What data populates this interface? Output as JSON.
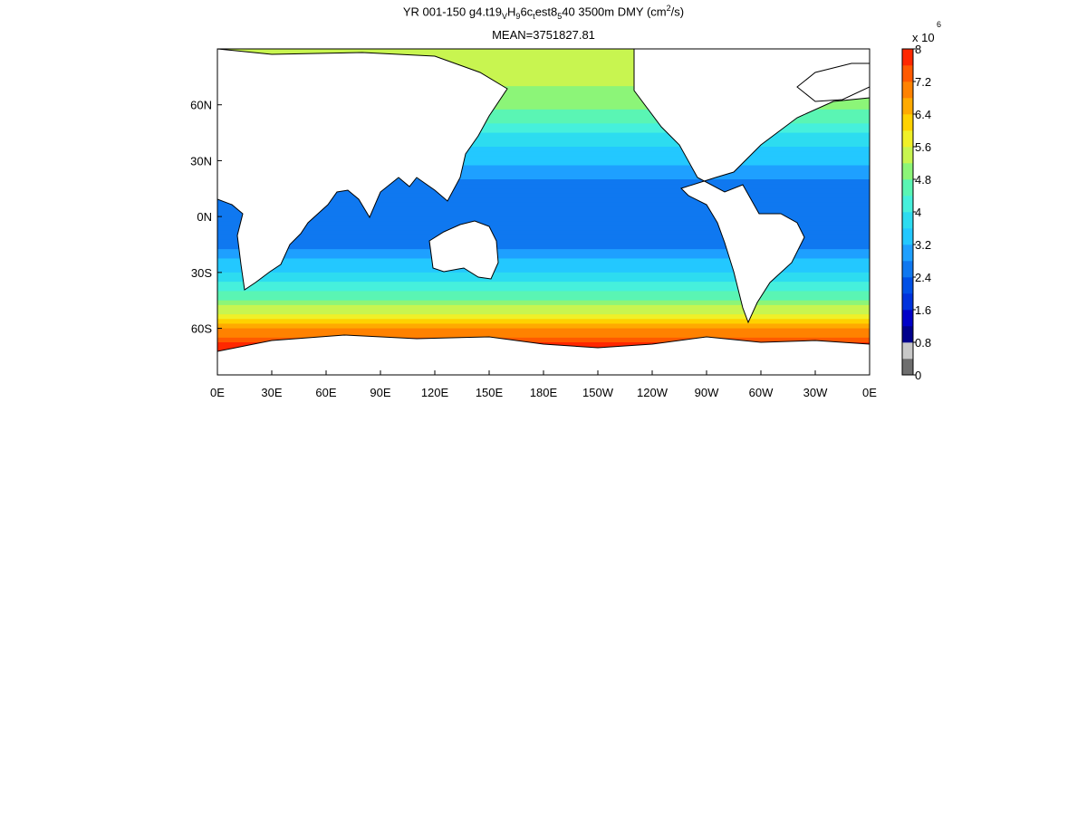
{
  "title": {
    "prefix": "YR 001-150 g4.t19",
    "sub1": "V",
    "mid1": "H",
    "sub2": "9",
    "mid2": "6c",
    "sub3": "t",
    "mid3": "est8",
    "sub4": "5",
    "suffix": "40 3500m DMY (cm",
    "sup": "2",
    "end": "/s)"
  },
  "subtitle": "MEAN=3751827.81",
  "axes": {
    "x_ticks": [
      "0E",
      "30E",
      "60E",
      "90E",
      "120E",
      "150E",
      "180E",
      "150W",
      "120W",
      "90W",
      "60W",
      "30W",
      "0E"
    ],
    "y_ticks": [
      "60N",
      "30N",
      "0N",
      "30S",
      "60S"
    ],
    "y_values": [
      60,
      30,
      0,
      -30,
      -60
    ],
    "lat_range": [
      -85,
      90
    ],
    "lon_range": [
      0,
      360
    ]
  },
  "colorbar": {
    "multiplier": "x 10",
    "exponent": "6",
    "labels": [
      "8",
      "7.2",
      "6.4",
      "5.6",
      "4.8",
      "4",
      "3.2",
      "2.4",
      "1.6",
      "0.8",
      "0"
    ],
    "range": [
      0,
      8
    ],
    "colors": [
      "#6e6e6e",
      "#c8c8c8",
      "#00008c",
      "#0000c8",
      "#0032dc",
      "#0050e6",
      "#0f78f0",
      "#1ea0ff",
      "#23c8ff",
      "#2ddcf0",
      "#46f0dc",
      "#5af5b4",
      "#8cf578",
      "#c8f550",
      "#f0f028",
      "#ffd200",
      "#ffaa00",
      "#ff8200",
      "#ff5a00",
      "#ff2800"
    ]
  },
  "chart_data": {
    "type": "heatmap",
    "title": "YR 001-150 g4.t19VH96ctest8540 3500m DMY (cm2/s)",
    "subtitle": "MEAN=3751827.81",
    "xlabel": "",
    "ylabel": "",
    "colorbar_scale": "x 10^6",
    "field_by_latitude": [
      {
        "lat": 75,
        "value": 5.3
      },
      {
        "lat": 60,
        "value": 5.0
      },
      {
        "lat": 45,
        "value": 4.0
      },
      {
        "lat": 30,
        "value": 3.3
      },
      {
        "lat": 15,
        "value": 2.6
      },
      {
        "lat": 0,
        "value": 2.4
      },
      {
        "lat": -15,
        "value": 2.7
      },
      {
        "lat": -30,
        "value": 3.6
      },
      {
        "lat": -45,
        "value": 4.8
      },
      {
        "lat": -55,
        "value": 6.0
      },
      {
        "lat": -62,
        "value": 7.0
      },
      {
        "lat": -70,
        "value": 7.8
      }
    ]
  }
}
